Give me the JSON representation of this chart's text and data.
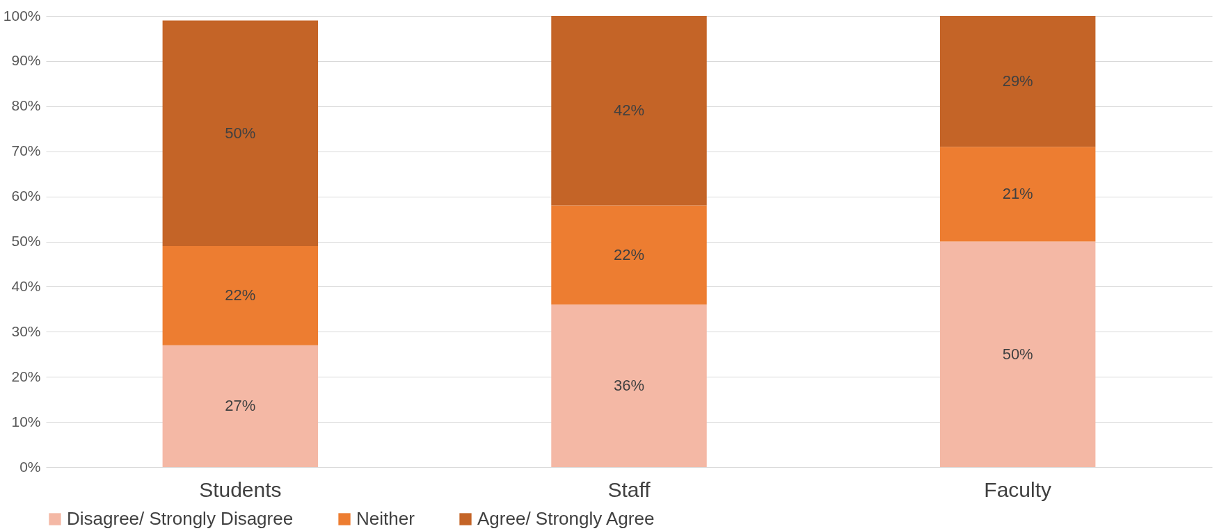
{
  "chart_data": {
    "type": "bar",
    "stacked": true,
    "categories": [
      "Students",
      "Staff",
      "Faculty"
    ],
    "series": [
      {
        "name": "Disagree/ Strongly Disagree",
        "color": "#f4b8a5",
        "values": [
          27,
          36,
          50
        ],
        "value_labels": [
          "27%",
          "36%",
          "50%"
        ]
      },
      {
        "name": "Neither",
        "color": "#ed7d31",
        "values": [
          22,
          22,
          21
        ],
        "value_labels": [
          "22%",
          "22%",
          "21%"
        ]
      },
      {
        "name": "Agree/ Strongly Agree",
        "color": "#c46427",
        "values": [
          50,
          42,
          29
        ],
        "value_labels": [
          "50%",
          "42%",
          "29%"
        ]
      }
    ],
    "ylim": [
      0,
      100
    ],
    "yticks": [
      {
        "value": 0,
        "label": "0%"
      },
      {
        "value": 10,
        "label": "10%"
      },
      {
        "value": 20,
        "label": "20%"
      },
      {
        "value": 30,
        "label": "30%"
      },
      {
        "value": 40,
        "label": "40%"
      },
      {
        "value": 50,
        "label": "50%"
      },
      {
        "value": 60,
        "label": "60%"
      },
      {
        "value": 70,
        "label": "70%"
      },
      {
        "value": 80,
        "label": "80%"
      },
      {
        "value": 90,
        "label": "90%"
      },
      {
        "value": 100,
        "label": "100%"
      }
    ],
    "grid": "y",
    "legend": "bottom"
  }
}
